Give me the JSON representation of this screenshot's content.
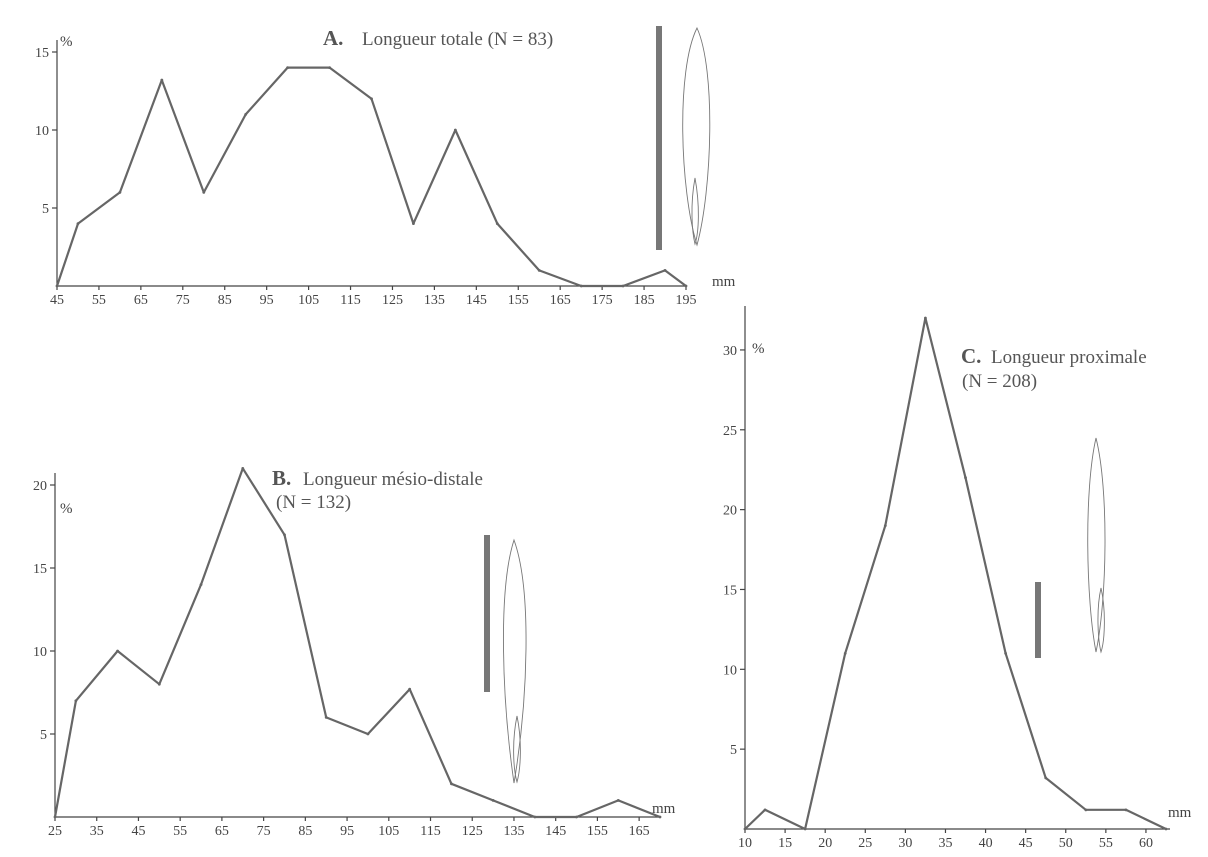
{
  "chart_data": [
    {
      "id": "A",
      "type": "line",
      "letter": "A.",
      "title": "Longueur totale (N = 83)",
      "subtitle": "",
      "ylabel": "%",
      "xunit": "mm",
      "x_ticks": [
        45,
        55,
        65,
        75,
        85,
        95,
        105,
        115,
        125,
        135,
        145,
        155,
        165,
        175,
        185,
        195
      ],
      "y_ticks": [
        5,
        10,
        15
      ],
      "xlim": [
        45,
        195
      ],
      "ylim": [
        0,
        15
      ],
      "series": [
        {
          "x": [
            45,
            50,
            60,
            70,
            80,
            90,
            100,
            110,
            120,
            130,
            140,
            150,
            160,
            170,
            180,
            190,
            195
          ],
          "y": [
            0,
            4,
            6,
            13.2,
            6,
            11,
            14,
            14,
            12,
            4,
            10,
            4,
            1,
            0,
            0,
            1,
            0
          ]
        }
      ],
      "color": "#666666"
    },
    {
      "id": "B",
      "type": "line",
      "letter": "B.",
      "title": "Longueur mésio-distale",
      "subtitle": "(N = 132)",
      "ylabel": "%",
      "xunit": "mm",
      "x_ticks": [
        25,
        35,
        45,
        55,
        65,
        75,
        85,
        95,
        105,
        115,
        125,
        135,
        145,
        155,
        165
      ],
      "y_ticks": [
        5,
        10,
        15,
        20
      ],
      "xlim": [
        25,
        170
      ],
      "ylim": [
        0,
        20
      ],
      "series": [
        {
          "x": [
            25,
            30,
            40,
            50,
            60,
            70,
            80,
            90,
            100,
            110,
            120,
            130,
            140,
            150,
            160,
            170
          ],
          "y": [
            0,
            7,
            10,
            8,
            14,
            21,
            17,
            6,
            5,
            7.7,
            2,
            1,
            0,
            0,
            1,
            0
          ]
        }
      ],
      "color": "#666666"
    },
    {
      "id": "C",
      "type": "line",
      "letter": "C.",
      "title": "Longueur proximale",
      "subtitle": "(N = 208)",
      "ylabel": "%",
      "xunit": "mm",
      "x_ticks": [
        10,
        15,
        20,
        25,
        30,
        35,
        40,
        45,
        50,
        55,
        60
      ],
      "y_ticks": [
        5,
        10,
        15,
        20,
        25,
        30
      ],
      "xlim": [
        10,
        63
      ],
      "ylim": [
        0,
        32
      ],
      "series": [
        {
          "x": [
            10,
            12.5,
            17.5,
            22.5,
            27.5,
            32.5,
            37.5,
            42.5,
            47.5,
            52.5,
            57.5,
            62.5
          ],
          "y": [
            0,
            1.2,
            0,
            11,
            19,
            32,
            22,
            11,
            3.2,
            1.2,
            1.2,
            0
          ]
        }
      ],
      "color": "#666666"
    }
  ]
}
